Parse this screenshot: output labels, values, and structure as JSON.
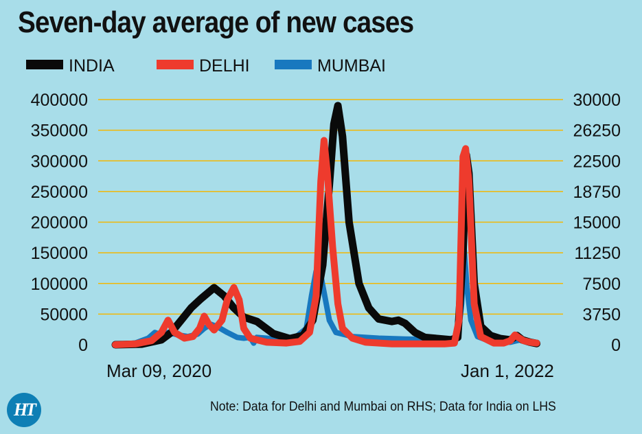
{
  "logo": {
    "text": "HT",
    "color": "#0e7fb5"
  },
  "note": "Note: Data for Delhi and Mumbai on RHS; Data for India on LHS",
  "chart_data": {
    "type": "line",
    "title": "Seven-day average of new cases",
    "legend_position": "top-left",
    "grid": true,
    "x_start_label": "Mar 09, 2020",
    "x_end_label": "Jan 1, 2022",
    "x_range": [
      0,
      680
    ],
    "left_axis": {
      "label": "INDIA",
      "ylim": [
        0,
        400000
      ],
      "ticks": [
        0,
        50000,
        100000,
        150000,
        200000,
        250000,
        300000,
        350000,
        400000
      ]
    },
    "right_axis": {
      "label": "DELHI, MUMBAI",
      "ylim": [
        0,
        30000
      ],
      "ticks": [
        0,
        3750,
        7500,
        11250,
        15000,
        18750,
        22500,
        26250,
        30000
      ]
    },
    "series": [
      {
        "name": "INDIA",
        "color": "#0a0a0a",
        "axis": "left",
        "points": [
          [
            0,
            0
          ],
          [
            40,
            1000
          ],
          [
            70,
            8000
          ],
          [
            85,
            20000
          ],
          [
            100,
            40000
          ],
          [
            115,
            60000
          ],
          [
            130,
            75000
          ],
          [
            150,
            93000
          ],
          [
            165,
            80000
          ],
          [
            180,
            60000
          ],
          [
            195,
            45000
          ],
          [
            215,
            38000
          ],
          [
            240,
            18000
          ],
          [
            265,
            10000
          ],
          [
            285,
            15000
          ],
          [
            300,
            40000
          ],
          [
            315,
            130000
          ],
          [
            325,
            260000
          ],
          [
            332,
            360000
          ],
          [
            338,
            390000
          ],
          [
            345,
            340000
          ],
          [
            355,
            200000
          ],
          [
            370,
            100000
          ],
          [
            385,
            60000
          ],
          [
            400,
            42000
          ],
          [
            420,
            38000
          ],
          [
            430,
            40000
          ],
          [
            440,
            35000
          ],
          [
            455,
            20000
          ],
          [
            470,
            12000
          ],
          [
            490,
            10000
          ],
          [
            510,
            8000
          ],
          [
            520,
            12000
          ],
          [
            528,
            150000
          ],
          [
            533,
            310000
          ],
          [
            537,
            280000
          ],
          [
            545,
            100000
          ],
          [
            555,
            30000
          ],
          [
            570,
            15000
          ],
          [
            585,
            10000
          ],
          [
            600,
            8000
          ],
          [
            610,
            15000
          ],
          [
            618,
            8000
          ],
          [
            630,
            4000
          ],
          [
            640,
            2000
          ]
        ]
      },
      {
        "name": "DELHI",
        "color": "#ee3b2d",
        "axis": "right",
        "points": [
          [
            0,
            0
          ],
          [
            30,
            100
          ],
          [
            55,
            500
          ],
          [
            70,
            1500
          ],
          [
            80,
            3000
          ],
          [
            90,
            1500
          ],
          [
            105,
            800
          ],
          [
            118,
            1000
          ],
          [
            128,
            2000
          ],
          [
            135,
            3500
          ],
          [
            142,
            2500
          ],
          [
            150,
            1800
          ],
          [
            162,
            3000
          ],
          [
            170,
            5500
          ],
          [
            180,
            7000
          ],
          [
            188,
            5500
          ],
          [
            195,
            2000
          ],
          [
            205,
            800
          ],
          [
            230,
            300
          ],
          [
            260,
            200
          ],
          [
            280,
            400
          ],
          [
            295,
            1500
          ],
          [
            305,
            6000
          ],
          [
            312,
            20000
          ],
          [
            317,
            25000
          ],
          [
            322,
            21000
          ],
          [
            330,
            12000
          ],
          [
            338,
            5000
          ],
          [
            345,
            2000
          ],
          [
            360,
            800
          ],
          [
            380,
            300
          ],
          [
            420,
            100
          ],
          [
            500,
            100
          ],
          [
            515,
            200
          ],
          [
            522,
            3000
          ],
          [
            528,
            23000
          ],
          [
            532,
            24000
          ],
          [
            537,
            20000
          ],
          [
            545,
            5000
          ],
          [
            555,
            1000
          ],
          [
            575,
            200
          ],
          [
            590,
            200
          ],
          [
            600,
            500
          ],
          [
            607,
            1200
          ],
          [
            612,
            900
          ],
          [
            620,
            500
          ],
          [
            630,
            300
          ],
          [
            640,
            200
          ]
        ]
      },
      {
        "name": "MUMBAI",
        "color": "#1878bf",
        "axis": "right",
        "points": [
          [
            0,
            0
          ],
          [
            30,
            200
          ],
          [
            50,
            800
          ],
          [
            60,
            1500
          ],
          [
            70,
            1200
          ],
          [
            80,
            1500
          ],
          [
            95,
            1200
          ],
          [
            110,
            1000
          ],
          [
            125,
            1300
          ],
          [
            135,
            2000
          ],
          [
            145,
            2500
          ],
          [
            155,
            2200
          ],
          [
            170,
            1500
          ],
          [
            185,
            900
          ],
          [
            195,
            800
          ],
          [
            205,
            900
          ],
          [
            210,
            200
          ],
          [
            215,
            900
          ],
          [
            230,
            800
          ],
          [
            255,
            500
          ],
          [
            275,
            1000
          ],
          [
            290,
            2000
          ],
          [
            298,
            6000
          ],
          [
            305,
            9000
          ],
          [
            312,
            8500
          ],
          [
            318,
            6000
          ],
          [
            325,
            3000
          ],
          [
            335,
            1500
          ],
          [
            360,
            1000
          ],
          [
            400,
            800
          ],
          [
            440,
            700
          ],
          [
            500,
            600
          ],
          [
            520,
            800
          ],
          [
            526,
            5000
          ],
          [
            530,
            11500
          ],
          [
            534,
            7000
          ],
          [
            540,
            3000
          ],
          [
            550,
            1000
          ],
          [
            570,
            400
          ],
          [
            600,
            300
          ],
          [
            615,
            600
          ],
          [
            630,
            300
          ],
          [
            640,
            100
          ]
        ]
      }
    ]
  }
}
